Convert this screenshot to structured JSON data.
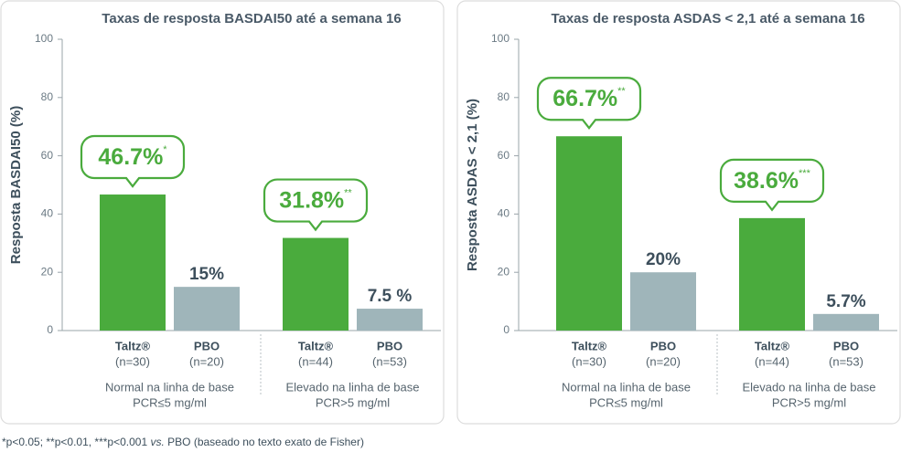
{
  "chart_data": [
    {
      "type": "bar",
      "title": "Taxas de resposta BASDAI50 até a semana 16",
      "y_label": "Resposta BASDAI50 (%)",
      "ylim": [
        0,
        100
      ],
      "yticks": [
        0,
        20,
        40,
        60,
        80,
        100
      ],
      "categories": [
        [
          "Normal na linha de base",
          "PCR≤5 mg/ml"
        ],
        [
          "Elevado na linha de base",
          "PCR>5 mg/ml"
        ]
      ],
      "series": [
        {
          "name": "Taltz®",
          "color": "#4aab3d",
          "values": [
            46.7,
            31.8
          ],
          "value_labels": [
            "46.7%",
            "31.8%"
          ],
          "significance": [
            "*",
            "**"
          ],
          "n_labels": [
            "(n=30)",
            "(n=44)"
          ]
        },
        {
          "name": "PBO",
          "color": "#9fb5ba",
          "values": [
            15,
            7.5
          ],
          "value_labels": [
            "15%",
            "7.5 %"
          ],
          "n_labels": [
            "(n=20)",
            "(n=53)"
          ]
        }
      ]
    },
    {
      "type": "bar",
      "title": "Taxas de resposta ASDAS < 2,1 até a semana 16",
      "y_label": "Resposta ASDAS < 2,1 (%)",
      "ylim": [
        0,
        100
      ],
      "yticks": [
        0,
        20,
        40,
        60,
        80,
        100
      ],
      "categories": [
        [
          "Normal na linha de base",
          "PCR≤5 mg/ml"
        ],
        [
          "Elevado na linha de base",
          "PCR>5 mg/ml"
        ]
      ],
      "series": [
        {
          "name": "Taltz®",
          "color": "#4aab3d",
          "values": [
            66.7,
            38.6
          ],
          "value_labels": [
            "66.7%",
            "38.6%"
          ],
          "significance": [
            "**",
            "***"
          ],
          "n_labels": [
            "(n=30)",
            "(n=44)"
          ]
        },
        {
          "name": "PBO",
          "color": "#9fb5ba",
          "values": [
            20,
            5.7
          ],
          "value_labels": [
            "20%",
            "5.7%"
          ],
          "n_labels": [
            "(n=20)",
            "(n=53)"
          ]
        }
      ]
    }
  ],
  "footnote": [
    "*p<0.05; **p<0.01, ***p<0.001 ",
    "vs.",
    " PBO (baseado no texto exato de Fisher)"
  ]
}
